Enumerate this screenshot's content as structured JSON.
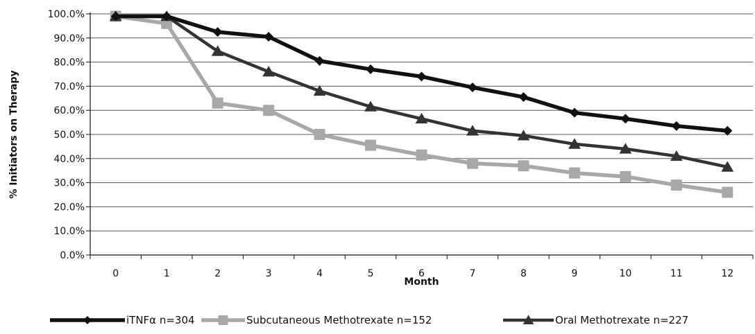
{
  "chart_data": {
    "type": "line",
    "title": "",
    "xlabel": "Month",
    "ylabel": "% Initiators on Therapy",
    "categories": [
      "0",
      "1",
      "2",
      "3",
      "4",
      "5",
      "6",
      "7",
      "8",
      "9",
      "10",
      "11",
      "12"
    ],
    "yticks": [
      "0.0%",
      "10.0%",
      "20.0%",
      "30.0%",
      "40.0%",
      "50.0%",
      "60.0%",
      "70.0%",
      "80.0%",
      "90.0%",
      "100.0%"
    ],
    "ylim": [
      0,
      100
    ],
    "grid": true,
    "legend_position": "bottom",
    "series": [
      {
        "name": "iTNFα   n=304",
        "marker": "diamond",
        "color": "#111111",
        "values": [
          99,
          99,
          92.5,
          90.5,
          80.5,
          77,
          74,
          69.5,
          65.5,
          59,
          56.5,
          53.5,
          51.5
        ]
      },
      {
        "name": "Subcutaneous Methotrexate n=152",
        "marker": "square",
        "color": "#a8a8a8",
        "values": [
          99,
          96,
          63,
          60,
          50,
          45.5,
          41.5,
          38,
          37,
          34,
          32.5,
          29,
          26
        ]
      },
      {
        "name": "Oral Methotrexate n=227",
        "marker": "triangle",
        "color": "#333333",
        "values": [
          99,
          99,
          84.5,
          76,
          68,
          61.5,
          56.5,
          51.5,
          49.5,
          46,
          44,
          41,
          36.5
        ]
      }
    ]
  }
}
